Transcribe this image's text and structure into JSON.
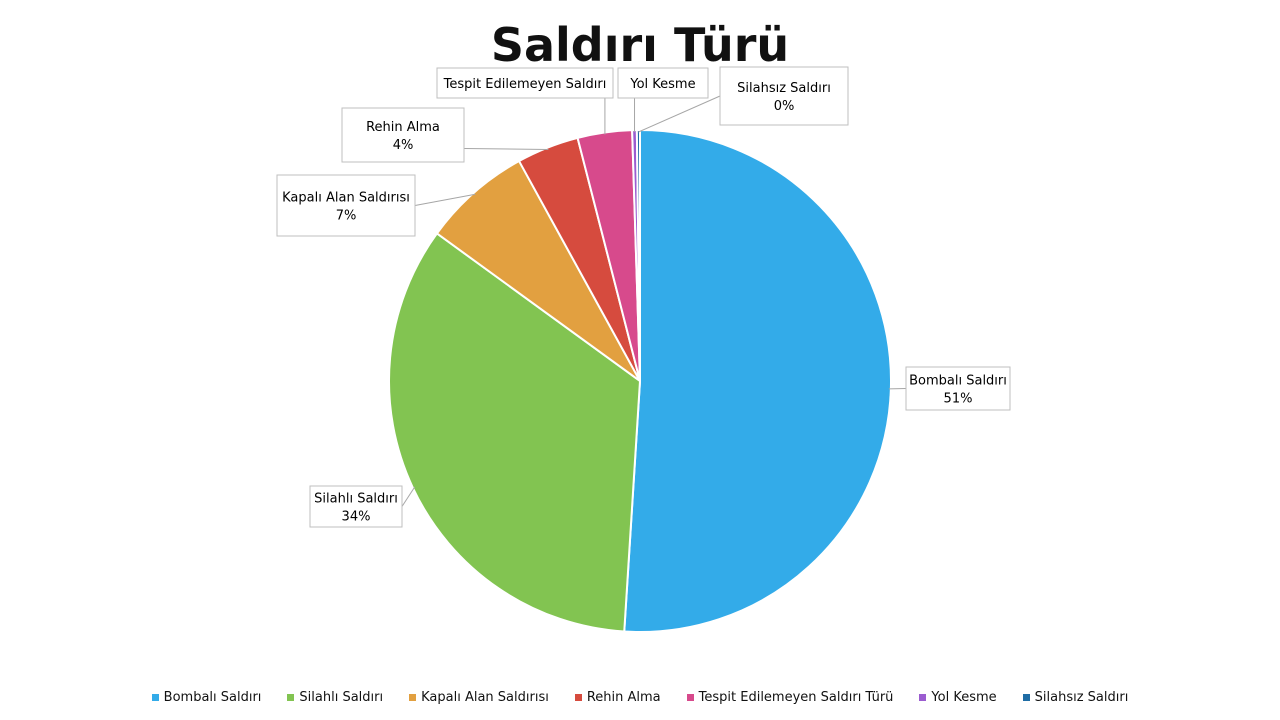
{
  "chart_data": {
    "type": "pie",
    "title": "Saldırı Türü",
    "slices": [
      {
        "label": "Bombalı Saldırı",
        "legend": "Bombalı Saldırı",
        "value": 51,
        "value_label": "51%",
        "color": "#33abe9"
      },
      {
        "label": "Silahlı Saldırı",
        "legend": "Silahlı Saldırı",
        "value": 34,
        "value_label": "34%",
        "color": "#82c451"
      },
      {
        "label": "Kapalı Alan Saldırısı",
        "legend": "Kapalı Alan Saldırısı",
        "value": 7,
        "value_label": "7%",
        "color": "#e2a040"
      },
      {
        "label": "Rehin Alma",
        "legend": "Rehin Alma",
        "value": 4,
        "value_label": "4%",
        "color": "#d64b3e"
      },
      {
        "label": "Tespit Edilemeyen Saldırı",
        "legend": "Tespit Edilemeyen Saldırı Türü",
        "value": 3.5,
        "value_label": "",
        "color": "#d74a8c"
      },
      {
        "label": "Yol Kesme",
        "legend": "Yol Kesme",
        "value": 0.3,
        "value_label": "",
        "color": "#9b5cd0"
      },
      {
        "label": "Silahsız Saldırı",
        "legend": "Silahsız Saldırı",
        "value": 0.2,
        "value_label": "0%",
        "color": "#1f6da5"
      }
    ],
    "legend_position": "bottom"
  }
}
